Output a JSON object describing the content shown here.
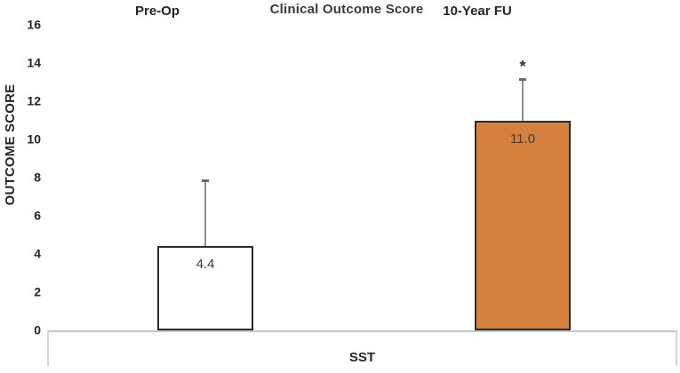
{
  "chart_data": {
    "type": "bar",
    "title": "Clinical Outcome Score",
    "xlabel": "SST",
    "ylabel": "OUTCOME SCORE",
    "categories": [
      "Pre-Op",
      "10-Year FU"
    ],
    "values": [
      4.4,
      11.0
    ],
    "value_labels": [
      "4.4",
      "11.0"
    ],
    "error_bars_upper": [
      3.5,
      2.2
    ],
    "annotations": [
      "",
      "*"
    ],
    "bar_fill_colors": [
      "#FFFFFF",
      "#D5813E"
    ],
    "bar_border_color": "#2B2B2B",
    "error_bar_color": "#8C8C8C",
    "ylim": [
      0,
      16
    ],
    "yticks": [
      0,
      2,
      4,
      6,
      8,
      10,
      12,
      14,
      16
    ],
    "grid": false,
    "legend": "none"
  }
}
